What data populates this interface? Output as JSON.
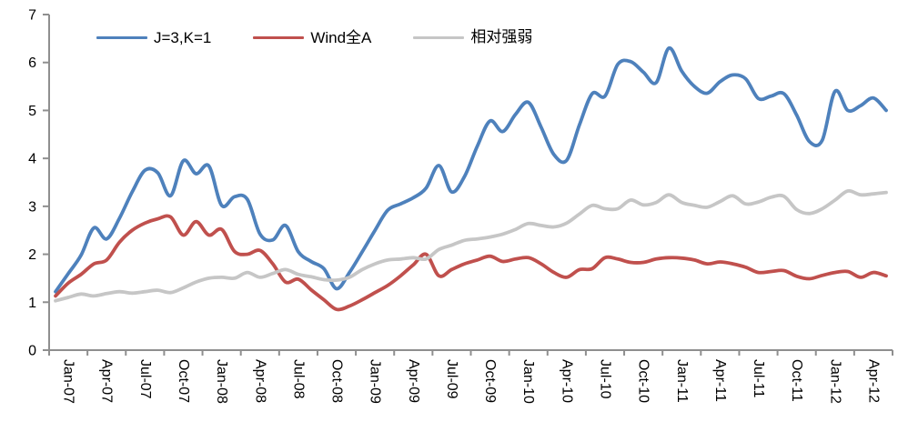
{
  "chart_data": {
    "type": "line",
    "title": "",
    "xlabel": "",
    "ylabel": "",
    "ylim": [
      0,
      7
    ],
    "y_ticks": [
      0,
      1,
      2,
      3,
      4,
      5,
      6,
      7
    ],
    "grid": "off",
    "smoothed_lines": true,
    "legend_position": "top-left-inside",
    "x_axis_tick_labels": [
      "Jan-07",
      "Apr-07",
      "Jul-07",
      "Oct-07",
      "Jan-08",
      "Apr-08",
      "Jul-08",
      "Oct-08",
      "Jan-09",
      "Apr-09",
      "Jul-09",
      "Oct-09",
      "Jan-10",
      "Apr-10",
      "Jul-10",
      "Oct-10",
      "Jan-11",
      "Apr-11",
      "Jul-11",
      "Oct-11",
      "Jan-12",
      "Apr-12"
    ],
    "x": [
      "Jan-07",
      "Feb-07",
      "Mar-07",
      "Apr-07",
      "May-07",
      "Jun-07",
      "Jul-07",
      "Aug-07",
      "Sep-07",
      "Oct-07",
      "Nov-07",
      "Dec-07",
      "Jan-08",
      "Feb-08",
      "Mar-08",
      "Apr-08",
      "May-08",
      "Jun-08",
      "Jul-08",
      "Aug-08",
      "Sep-08",
      "Oct-08",
      "Nov-08",
      "Dec-08",
      "Jan-09",
      "Feb-09",
      "Mar-09",
      "Apr-09",
      "May-09",
      "Jun-09",
      "Jul-09",
      "Aug-09",
      "Sep-09",
      "Oct-09",
      "Nov-09",
      "Dec-09",
      "Jan-10",
      "Feb-10",
      "Mar-10",
      "Apr-10",
      "May-10",
      "Jun-10",
      "Jul-10",
      "Aug-10",
      "Sep-10",
      "Oct-10",
      "Nov-10",
      "Dec-10",
      "Jan-11",
      "Feb-11",
      "Mar-11",
      "Apr-11",
      "May-11",
      "Jun-11",
      "Jul-11",
      "Aug-11",
      "Sep-11",
      "Oct-11",
      "Nov-11",
      "Dec-11",
      "Jan-12",
      "Feb-12",
      "Mar-12",
      "Apr-12",
      "May-12",
      "Jun-12"
    ],
    "series": [
      {
        "name": "J=3,K=1",
        "color": "#4E81BC",
        "values": [
          1.22,
          1.6,
          1.98,
          2.55,
          2.32,
          2.75,
          3.3,
          3.75,
          3.7,
          3.22,
          3.95,
          3.68,
          3.84,
          3.02,
          3.2,
          3.15,
          2.42,
          2.3,
          2.6,
          2.05,
          1.85,
          1.7,
          1.28,
          1.62,
          2.05,
          2.5,
          2.92,
          3.05,
          3.18,
          3.38,
          3.85,
          3.3,
          3.62,
          4.25,
          4.78,
          4.56,
          4.92,
          5.17,
          4.65,
          4.08,
          3.96,
          4.7,
          5.35,
          5.3,
          5.96,
          6.02,
          5.8,
          5.58,
          6.3,
          5.82,
          5.5,
          5.36,
          5.6,
          5.74,
          5.66,
          5.25,
          5.3,
          5.35,
          4.9,
          4.35,
          4.38,
          5.4,
          5.0,
          5.1,
          5.26,
          5.0
        ]
      },
      {
        "name": "Wind全A",
        "color": "#C0504D",
        "values": [
          1.13,
          1.4,
          1.58,
          1.8,
          1.88,
          2.25,
          2.5,
          2.65,
          2.74,
          2.78,
          2.4,
          2.68,
          2.4,
          2.52,
          2.06,
          2.0,
          2.08,
          1.8,
          1.42,
          1.48,
          1.26,
          1.05,
          0.85,
          0.92,
          1.05,
          1.2,
          1.35,
          1.55,
          1.78,
          2.0,
          1.55,
          1.68,
          1.8,
          1.88,
          1.96,
          1.85,
          1.9,
          1.93,
          1.8,
          1.62,
          1.52,
          1.68,
          1.7,
          1.93,
          1.9,
          1.83,
          1.83,
          1.9,
          1.93,
          1.92,
          1.88,
          1.8,
          1.84,
          1.8,
          1.73,
          1.62,
          1.64,
          1.66,
          1.54,
          1.49,
          1.56,
          1.62,
          1.64,
          1.52,
          1.62,
          1.55
        ]
      },
      {
        "name": "相对强弱",
        "color": "#C6C6C6",
        "values": [
          1.03,
          1.1,
          1.17,
          1.13,
          1.18,
          1.22,
          1.19,
          1.22,
          1.25,
          1.2,
          1.3,
          1.42,
          1.5,
          1.52,
          1.5,
          1.62,
          1.52,
          1.6,
          1.68,
          1.58,
          1.53,
          1.47,
          1.46,
          1.52,
          1.68,
          1.8,
          1.88,
          1.9,
          1.93,
          1.9,
          2.1,
          2.19,
          2.29,
          2.32,
          2.36,
          2.42,
          2.52,
          2.64,
          2.6,
          2.57,
          2.65,
          2.84,
          3.02,
          2.95,
          2.95,
          3.13,
          3.03,
          3.08,
          3.24,
          3.08,
          3.02,
          2.98,
          3.1,
          3.22,
          3.05,
          3.09,
          3.19,
          3.21,
          2.93,
          2.85,
          2.95,
          3.13,
          3.32,
          3.24,
          3.26,
          3.29
        ]
      }
    ]
  },
  "colors": {
    "axis": "#8F8F8F",
    "tick_label": "#000000",
    "background": "#FFFFFF"
  }
}
